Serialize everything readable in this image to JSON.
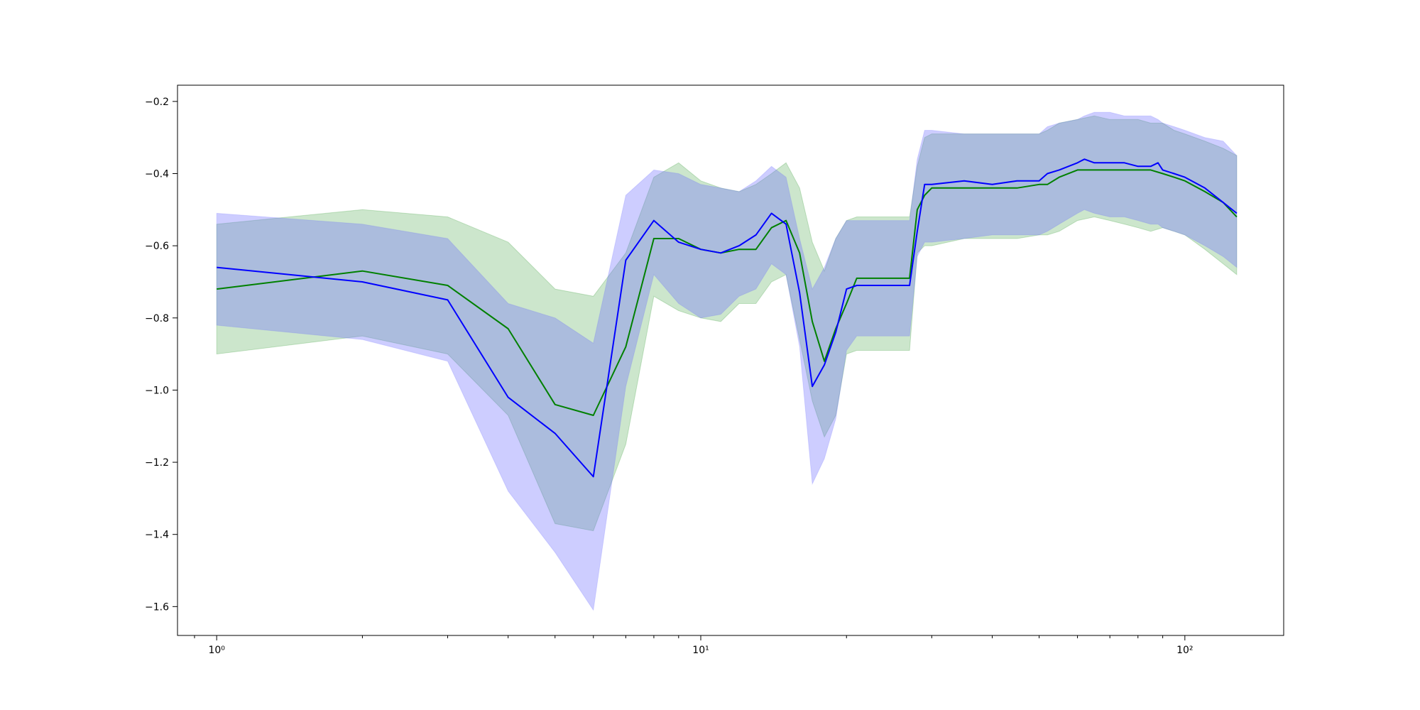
{
  "chart_data": {
    "type": "line",
    "title": "",
    "xlabel": "",
    "ylabel": "",
    "x_scale": "log",
    "xlim": [
      0.83,
      160
    ],
    "ylim": [
      -1.68,
      -0.155
    ],
    "grid": false,
    "x_major_ticks": [
      {
        "value": 1,
        "label": "10⁰"
      },
      {
        "value": 10,
        "label": "10¹"
      },
      {
        "value": 100,
        "label": "10²"
      }
    ],
    "y_ticks": [
      {
        "value": -0.2,
        "label": "−0.2"
      },
      {
        "value": -0.4,
        "label": "−0.4"
      },
      {
        "value": -0.6,
        "label": "−0.6"
      },
      {
        "value": -0.8,
        "label": "−0.8"
      },
      {
        "value": -1.0,
        "label": "−1.0"
      },
      {
        "value": -1.2,
        "label": "−1.2"
      },
      {
        "value": -1.4,
        "label": "−1.4"
      },
      {
        "value": -1.6,
        "label": "−1.6"
      }
    ],
    "series": [
      {
        "color": "#008000",
        "band_color": "#008000",
        "x": [
          1,
          2,
          3,
          4,
          5,
          6,
          7,
          8,
          9,
          10,
          11,
          12,
          13,
          14,
          15,
          16,
          17,
          18,
          19,
          20,
          21,
          22,
          25,
          27,
          28,
          29,
          30,
          35,
          40,
          45,
          50,
          52,
          55,
          60,
          65,
          70,
          75,
          80,
          85,
          90,
          95,
          100,
          110,
          120,
          128
        ],
        "mean": [
          -0.72,
          -0.67,
          -0.71,
          -0.83,
          -1.04,
          -1.07,
          -0.88,
          -0.58,
          -0.58,
          -0.61,
          -0.62,
          -0.61,
          -0.61,
          -0.55,
          -0.53,
          -0.62,
          -0.81,
          -0.92,
          -0.83,
          -0.76,
          -0.69,
          -0.69,
          -0.69,
          -0.69,
          -0.5,
          -0.46,
          -0.44,
          -0.44,
          -0.44,
          -0.44,
          -0.43,
          -0.43,
          -0.41,
          -0.39,
          -0.39,
          -0.39,
          -0.39,
          -0.39,
          -0.39,
          -0.4,
          -0.41,
          -0.42,
          -0.45,
          -0.48,
          -0.52
        ],
        "lower": [
          -0.9,
          -0.85,
          -0.9,
          -1.07,
          -1.37,
          -1.39,
          -1.15,
          -0.74,
          -0.78,
          -0.8,
          -0.81,
          -0.76,
          -0.76,
          -0.7,
          -0.68,
          -0.86,
          -1.03,
          -1.13,
          -1.07,
          -0.9,
          -0.89,
          -0.89,
          -0.89,
          -0.89,
          -0.62,
          -0.6,
          -0.6,
          -0.58,
          -0.58,
          -0.58,
          -0.57,
          -0.57,
          -0.56,
          -0.53,
          -0.52,
          -0.53,
          -0.54,
          -0.55,
          -0.56,
          -0.55,
          -0.56,
          -0.57,
          -0.61,
          -0.65,
          -0.68
        ],
        "upper": [
          -0.54,
          -0.5,
          -0.52,
          -0.59,
          -0.72,
          -0.74,
          -0.62,
          -0.41,
          -0.37,
          -0.42,
          -0.44,
          -0.45,
          -0.43,
          -0.4,
          -0.37,
          -0.44,
          -0.59,
          -0.67,
          -0.58,
          -0.53,
          -0.52,
          -0.52,
          -0.52,
          -0.52,
          -0.38,
          -0.3,
          -0.29,
          -0.29,
          -0.29,
          -0.29,
          -0.29,
          -0.28,
          -0.26,
          -0.25,
          -0.24,
          -0.25,
          -0.25,
          -0.25,
          -0.26,
          -0.26,
          -0.28,
          -0.29,
          -0.31,
          -0.33,
          -0.35
        ]
      },
      {
        "color": "#0000ff",
        "band_color": "#6666ff",
        "x": [
          1,
          2,
          3,
          4,
          5,
          6,
          7,
          8,
          9,
          10,
          11,
          12,
          13,
          14,
          15,
          16,
          17,
          18,
          19,
          20,
          21,
          22,
          25,
          27,
          28,
          29,
          30,
          35,
          40,
          45,
          50,
          52,
          55,
          60,
          62,
          65,
          70,
          75,
          80,
          85,
          88,
          90,
          95,
          100,
          110,
          120,
          128
        ],
        "mean": [
          -0.66,
          -0.7,
          -0.75,
          -1.02,
          -1.12,
          -1.24,
          -0.64,
          -0.53,
          -0.59,
          -0.61,
          -0.62,
          -0.6,
          -0.57,
          -0.51,
          -0.54,
          -0.73,
          -0.99,
          -0.93,
          -0.84,
          -0.72,
          -0.71,
          -0.71,
          -0.71,
          -0.71,
          -0.56,
          -0.43,
          -0.43,
          -0.42,
          -0.43,
          -0.42,
          -0.42,
          -0.4,
          -0.39,
          -0.37,
          -0.36,
          -0.37,
          -0.37,
          -0.37,
          -0.38,
          -0.38,
          -0.37,
          -0.39,
          -0.4,
          -0.41,
          -0.44,
          -0.48,
          -0.51
        ],
        "lower": [
          -0.82,
          -0.86,
          -0.92,
          -1.28,
          -1.45,
          -1.61,
          -0.99,
          -0.68,
          -0.76,
          -0.8,
          -0.79,
          -0.74,
          -0.72,
          -0.65,
          -0.68,
          -0.88,
          -1.26,
          -1.19,
          -1.08,
          -0.89,
          -0.85,
          -0.85,
          -0.85,
          -0.85,
          -0.63,
          -0.59,
          -0.59,
          -0.58,
          -0.57,
          -0.57,
          -0.57,
          -0.56,
          -0.54,
          -0.51,
          -0.5,
          -0.51,
          -0.52,
          -0.52,
          -0.53,
          -0.54,
          -0.54,
          -0.55,
          -0.56,
          -0.57,
          -0.6,
          -0.63,
          -0.66
        ],
        "upper": [
          -0.51,
          -0.54,
          -0.58,
          -0.76,
          -0.8,
          -0.87,
          -0.46,
          -0.39,
          -0.4,
          -0.43,
          -0.44,
          -0.45,
          -0.42,
          -0.38,
          -0.41,
          -0.58,
          -0.72,
          -0.66,
          -0.58,
          -0.53,
          -0.53,
          -0.53,
          -0.53,
          -0.53,
          -0.36,
          -0.28,
          -0.28,
          -0.29,
          -0.29,
          -0.29,
          -0.29,
          -0.27,
          -0.26,
          -0.25,
          -0.24,
          -0.23,
          -0.23,
          -0.24,
          -0.24,
          -0.24,
          -0.25,
          -0.26,
          -0.27,
          -0.28,
          -0.3,
          -0.31,
          -0.35
        ]
      }
    ]
  }
}
